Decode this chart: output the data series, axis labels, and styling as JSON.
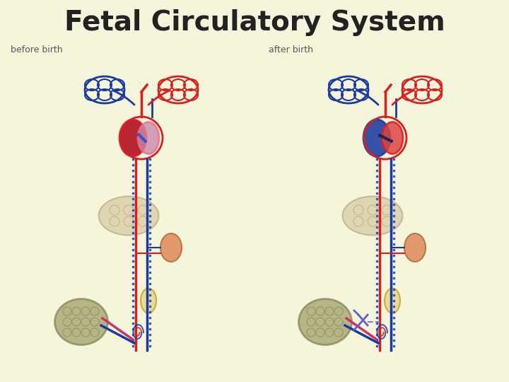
{
  "title": "Fetal Circulatory System",
  "title_fontsize": 28,
  "title_fontweight": "bold",
  "title_color": "#222222",
  "bg_color": "#f5f5dc",
  "label_before": "before birth",
  "label_after": "after birth",
  "label_fontsize": 9,
  "label_color": "#555555",
  "fig_width": 7.2,
  "fig_height": 5.4
}
